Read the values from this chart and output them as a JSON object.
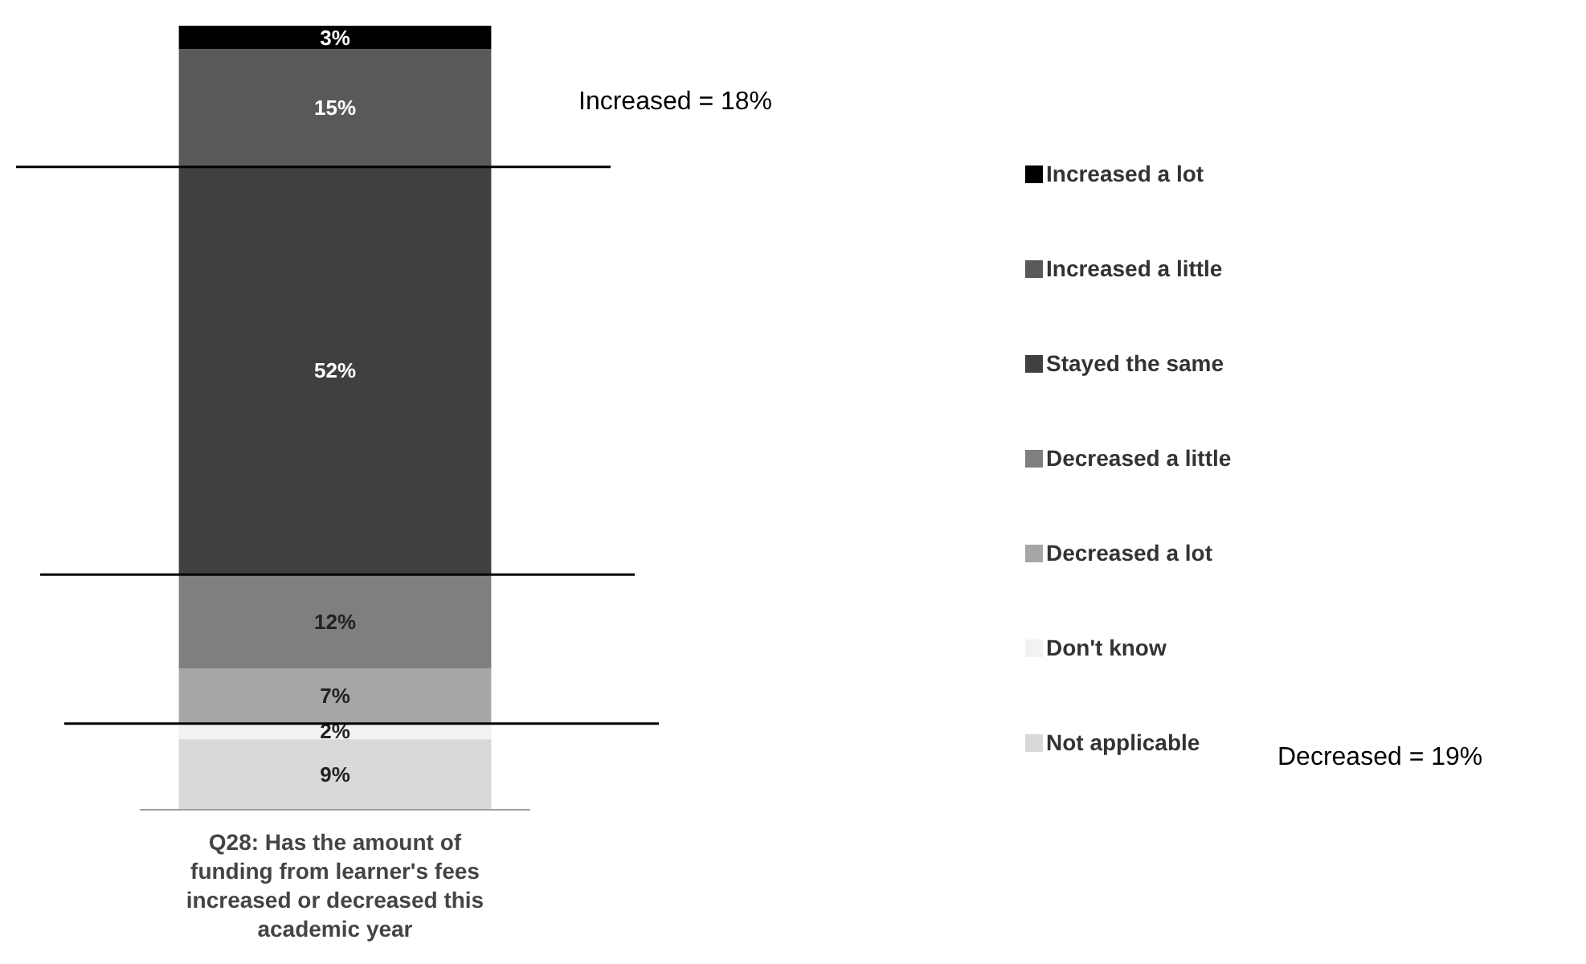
{
  "chart_data": {
    "type": "bar",
    "stacked": true,
    "categories": [
      null
    ],
    "xlabel": "Q28: Has the amount of funding from learner's fees increased or decreased this academic year",
    "series": [
      {
        "name": "Not applicable",
        "color": "#d9d9d9",
        "values": [
          9
        ],
        "value_labels": [
          "9%"
        ]
      },
      {
        "name": "Don't know",
        "color": "#f2f2f2",
        "values": [
          2
        ],
        "value_labels": [
          "2%"
        ]
      },
      {
        "name": "Decreased a lot",
        "color": "#a6a6a6",
        "values": [
          7
        ],
        "value_labels": [
          "7%"
        ]
      },
      {
        "name": "Decreased a little",
        "color": "#7f7f7f",
        "values": [
          12
        ],
        "value_labels": [
          "12%"
        ]
      },
      {
        "name": "Stayed the same",
        "color": "#404040",
        "values": [
          52
        ],
        "value_labels": [
          "52%"
        ]
      },
      {
        "name": "Increased a little",
        "color": "#595959",
        "values": [
          15
        ],
        "value_labels": [
          "15%"
        ]
      },
      {
        "name": "Increased a lot",
        "color": "#000000",
        "values": [
          3
        ],
        "value_labels": [
          "3%"
        ]
      }
    ],
    "legend": "right",
    "ref_lines": [
      {
        "axis": "y",
        "value": 82,
        "color": "#000000"
      },
      {
        "axis": "y",
        "value": 30,
        "color": "#000000"
      },
      {
        "axis": "y",
        "value": 11,
        "color": "#000000"
      }
    ],
    "annotations": [
      "Increased = 18%",
      "Decreased = 19%"
    ]
  }
}
